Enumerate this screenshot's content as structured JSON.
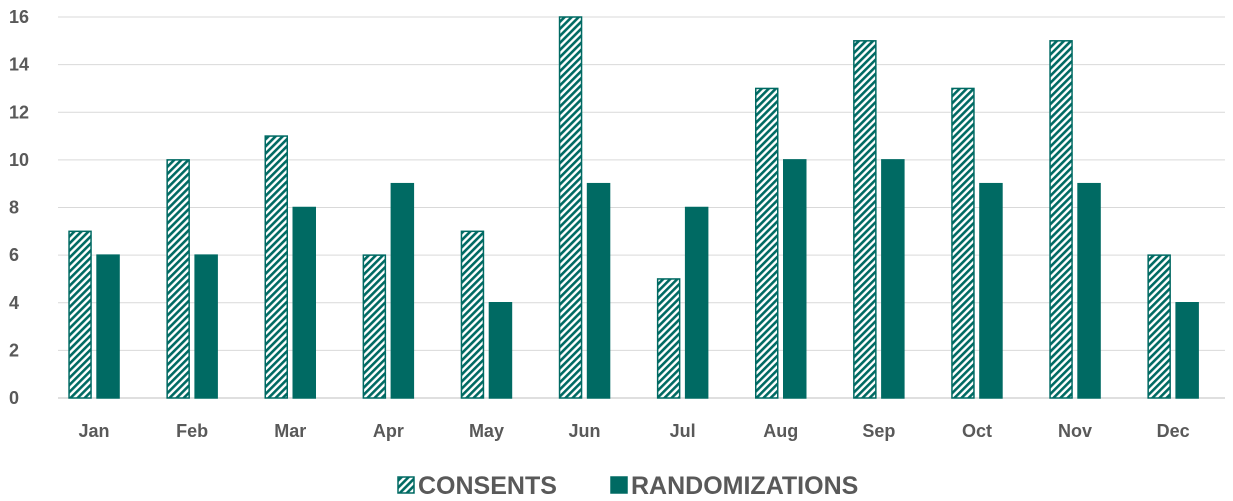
{
  "chart_data": {
    "type": "bar",
    "title": "",
    "xlabel": "",
    "ylabel": "",
    "categories": [
      "Jan",
      "Feb",
      "Mar",
      "Apr",
      "May",
      "Jun",
      "Jul",
      "Aug",
      "Sep",
      "Oct",
      "Nov",
      "Dec"
    ],
    "series": [
      {
        "name": "CONSENTS",
        "values": [
          7,
          10,
          11,
          6,
          7,
          16,
          5,
          13,
          15,
          13,
          15,
          6
        ],
        "color": "#006A63",
        "fill": "diagonal-hatch"
      },
      {
        "name": "RANDOMIZATIONS",
        "values": [
          6,
          6,
          8,
          9,
          4,
          9,
          8,
          10,
          10,
          9,
          9,
          4
        ],
        "color": "#006A63",
        "fill": "solid"
      }
    ],
    "ylim": [
      0,
      16
    ],
    "yticks": [
      0,
      2,
      4,
      6,
      8,
      10,
      12,
      14,
      16
    ],
    "grid": true,
    "legend_position": "bottom"
  }
}
